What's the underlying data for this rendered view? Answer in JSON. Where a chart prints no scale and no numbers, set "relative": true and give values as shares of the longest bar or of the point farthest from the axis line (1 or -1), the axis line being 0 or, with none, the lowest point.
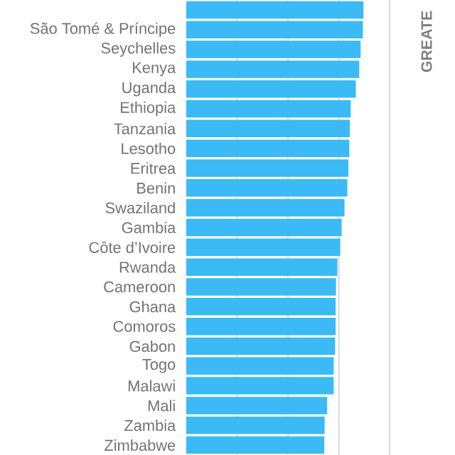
{
  "chart_data": {
    "type": "bar",
    "orientation": "horizontal",
    "relative": true,
    "grid": "x",
    "color": "#3bbaf5",
    "categories": [
      null,
      "São Tomé & Príncipe",
      "Seychelles",
      "Kenya",
      "Uganda",
      "Ethiopia",
      "Tanzania",
      "Lesotho",
      "Eritrea",
      "Benin",
      "Swaziland",
      "Gambia",
      "Côte d’Ivoire",
      "Rwanda",
      "Cameroon",
      "Ghana",
      "Comoros",
      "Gabon",
      "Togo",
      "Malawi",
      "Mali",
      "Zambia",
      "Zimbabwe"
    ],
    "values": [
      1,
      0.997,
      0.984,
      0.976,
      0.957,
      0.928,
      0.923,
      0.92,
      0.915,
      0.909,
      0.893,
      0.877,
      0.869,
      0.853,
      0.845,
      0.843,
      0.843,
      0.84,
      0.832,
      0.832,
      0.795,
      0.781,
      0.779
    ],
    "annotations": [
      "GREATE"
    ]
  }
}
